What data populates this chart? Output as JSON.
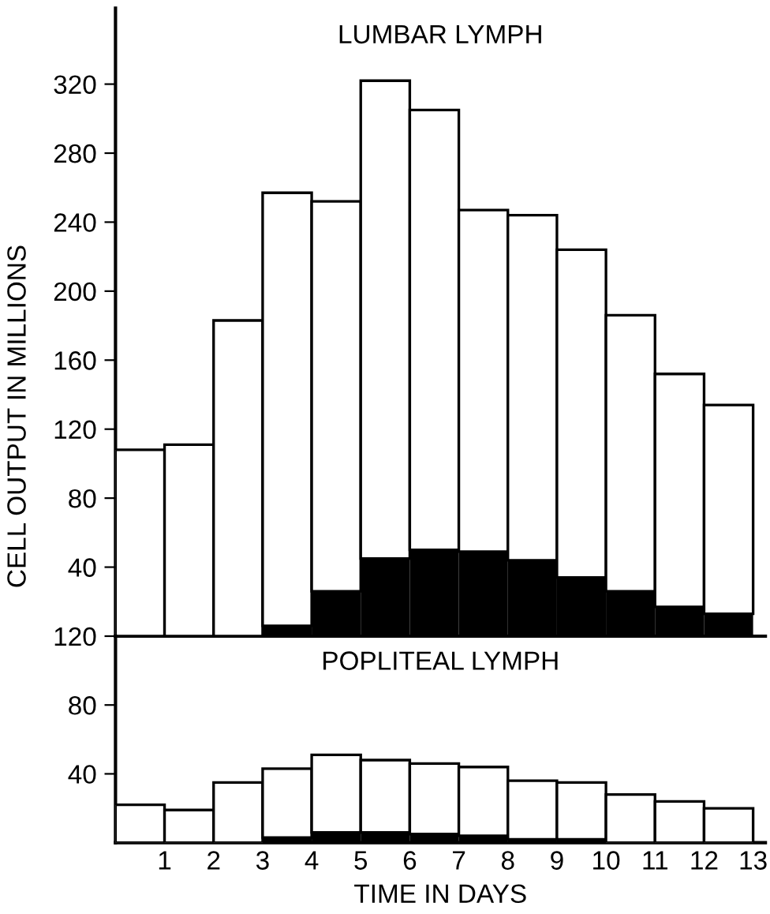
{
  "chart_data": [
    {
      "type": "bar",
      "title": "LUMBAR LYMPH",
      "ylabel": "CELL OUTPUT IN MILLIONS",
      "stacked": true,
      "tick_labels": "y",
      "x": [
        0.5,
        1.5,
        2.5,
        3.5,
        4.5,
        5.5,
        6.5,
        7.5,
        8.5,
        9.5,
        10.5,
        11.5,
        12.5
      ],
      "series": [
        {
          "color": "#000000",
          "values": [
            0,
            0,
            0,
            6,
            26,
            45,
            50,
            49,
            44,
            34,
            26,
            17,
            13
          ]
        },
        {
          "color": "#ffffff",
          "values": [
            108,
            111,
            183,
            251,
            226,
            277,
            255,
            198,
            200,
            190,
            160,
            135,
            121
          ]
        }
      ],
      "xlim": [
        0,
        13.25
      ],
      "ylim": [
        0,
        364
      ],
      "yticks": [
        40,
        80,
        120,
        160,
        200,
        240,
        280,
        320
      ]
    },
    {
      "type": "bar",
      "title": "POPLITEAL LYMPH",
      "xlabel": "TIME IN DAYS",
      "stacked": true,
      "x": [
        0.5,
        1.5,
        2.5,
        3.5,
        4.5,
        5.5,
        6.5,
        7.5,
        8.5,
        9.5,
        10.5,
        11.5,
        12.5
      ],
      "series": [
        {
          "color": "#000000",
          "values": [
            0,
            0,
            0,
            3,
            6,
            6,
            5,
            4,
            2,
            2,
            0,
            0,
            0
          ]
        },
        {
          "color": "#ffffff",
          "values": [
            22,
            19,
            35,
            40,
            45,
            42,
            41,
            40,
            34,
            33,
            28,
            24,
            20
          ]
        }
      ],
      "xlim": [
        0,
        13.25
      ],
      "xticks": [
        1,
        2,
        3,
        4,
        5,
        6,
        7,
        8,
        9,
        10,
        11,
        12,
        13
      ],
      "ylim": [
        0,
        120
      ],
      "yticks": [
        40,
        80,
        120
      ]
    }
  ]
}
